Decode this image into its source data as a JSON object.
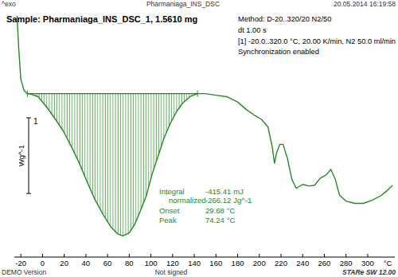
{
  "header": {
    "left": "^exo",
    "center": "Pharmaniaga_INS_DSC",
    "right": "20.05.2014 16:19:58"
  },
  "footer": {
    "left": "DEMO Version",
    "center": "Not signed",
    "right": "STARe SW 12.00"
  },
  "chart_data": {
    "type": "line",
    "title": "Sample: Pharmaniaga_INS_DSC_1, 1.5610 mg",
    "subtitle": [
      "Method: D-20..320/20 N2/50",
      "dt 1.00 s",
      "[1] -20.0..320.0 °C, 20.00 K/min, N2 50.0 ml/min",
      "Synchronization enabled"
    ],
    "x_label": "°C",
    "color": "#238a23",
    "x": [
      -23.5,
      -22,
      -20,
      -17,
      -14,
      -10,
      -4,
      4,
      12,
      19,
      27,
      34,
      41,
      48,
      56,
      63,
      69,
      74,
      80,
      85,
      90,
      96,
      101,
      107,
      112,
      118,
      124,
      129,
      136,
      143,
      150,
      160,
      170,
      180,
      188,
      195,
      202,
      208,
      212,
      214,
      216,
      219,
      222,
      226,
      230,
      234,
      240,
      246,
      251,
      256,
      262,
      266,
      270,
      274,
      280,
      288,
      296,
      304,
      312,
      318,
      323
    ],
    "values": [
      1.03,
      0.61,
      0.19,
      0.04,
      0.0,
      -0.01,
      -0.04,
      -0.18,
      -0.34,
      -0.49,
      -0.71,
      -0.92,
      -1.16,
      -1.39,
      -1.6,
      -1.76,
      -1.85,
      -1.88,
      -1.84,
      -1.73,
      -1.56,
      -1.34,
      -1.07,
      -0.81,
      -0.59,
      -0.39,
      -0.23,
      -0.13,
      -0.04,
      0.0,
      0.0,
      -0.02,
      -0.04,
      -0.11,
      -0.21,
      -0.28,
      -0.34,
      -0.44,
      -0.71,
      -0.92,
      -0.78,
      -0.67,
      -0.67,
      -0.86,
      -1.13,
      -1.25,
      -1.2,
      -1.22,
      -1.21,
      -1.12,
      -1.07,
      -1.0,
      -1.13,
      -1.34,
      -1.42,
      -1.45,
      -1.45,
      -1.41,
      -1.35,
      -1.28,
      -1.21
    ],
    "xlim": [
      -26,
      325
    ],
    "xticks": [
      -20,
      0,
      20,
      40,
      60,
      80,
      100,
      120,
      140,
      160,
      180,
      200,
      220,
      240,
      260,
      280,
      300
    ],
    "ylim": [
      -2.16,
      1.08
    ],
    "tick_labels": "x",
    "grid": false,
    "baseline": {
      "x": [
        -14,
        143
      ],
      "values": [
        0,
        0
      ]
    },
    "scale_bar": {
      "value": 1,
      "label": "1",
      "unit": "Wg^-1"
    },
    "annotations": [
      {
        "label": "Integral",
        "value": -415.41,
        "unit": "mJ"
      },
      {
        "label": "normalized",
        "value": -266.12,
        "unit": "Jg^-1"
      },
      {
        "label": "Onset",
        "value": 29.68,
        "unit": "°C"
      },
      {
        "label": "Peak",
        "value": 74.24,
        "unit": "°C"
      }
    ]
  }
}
